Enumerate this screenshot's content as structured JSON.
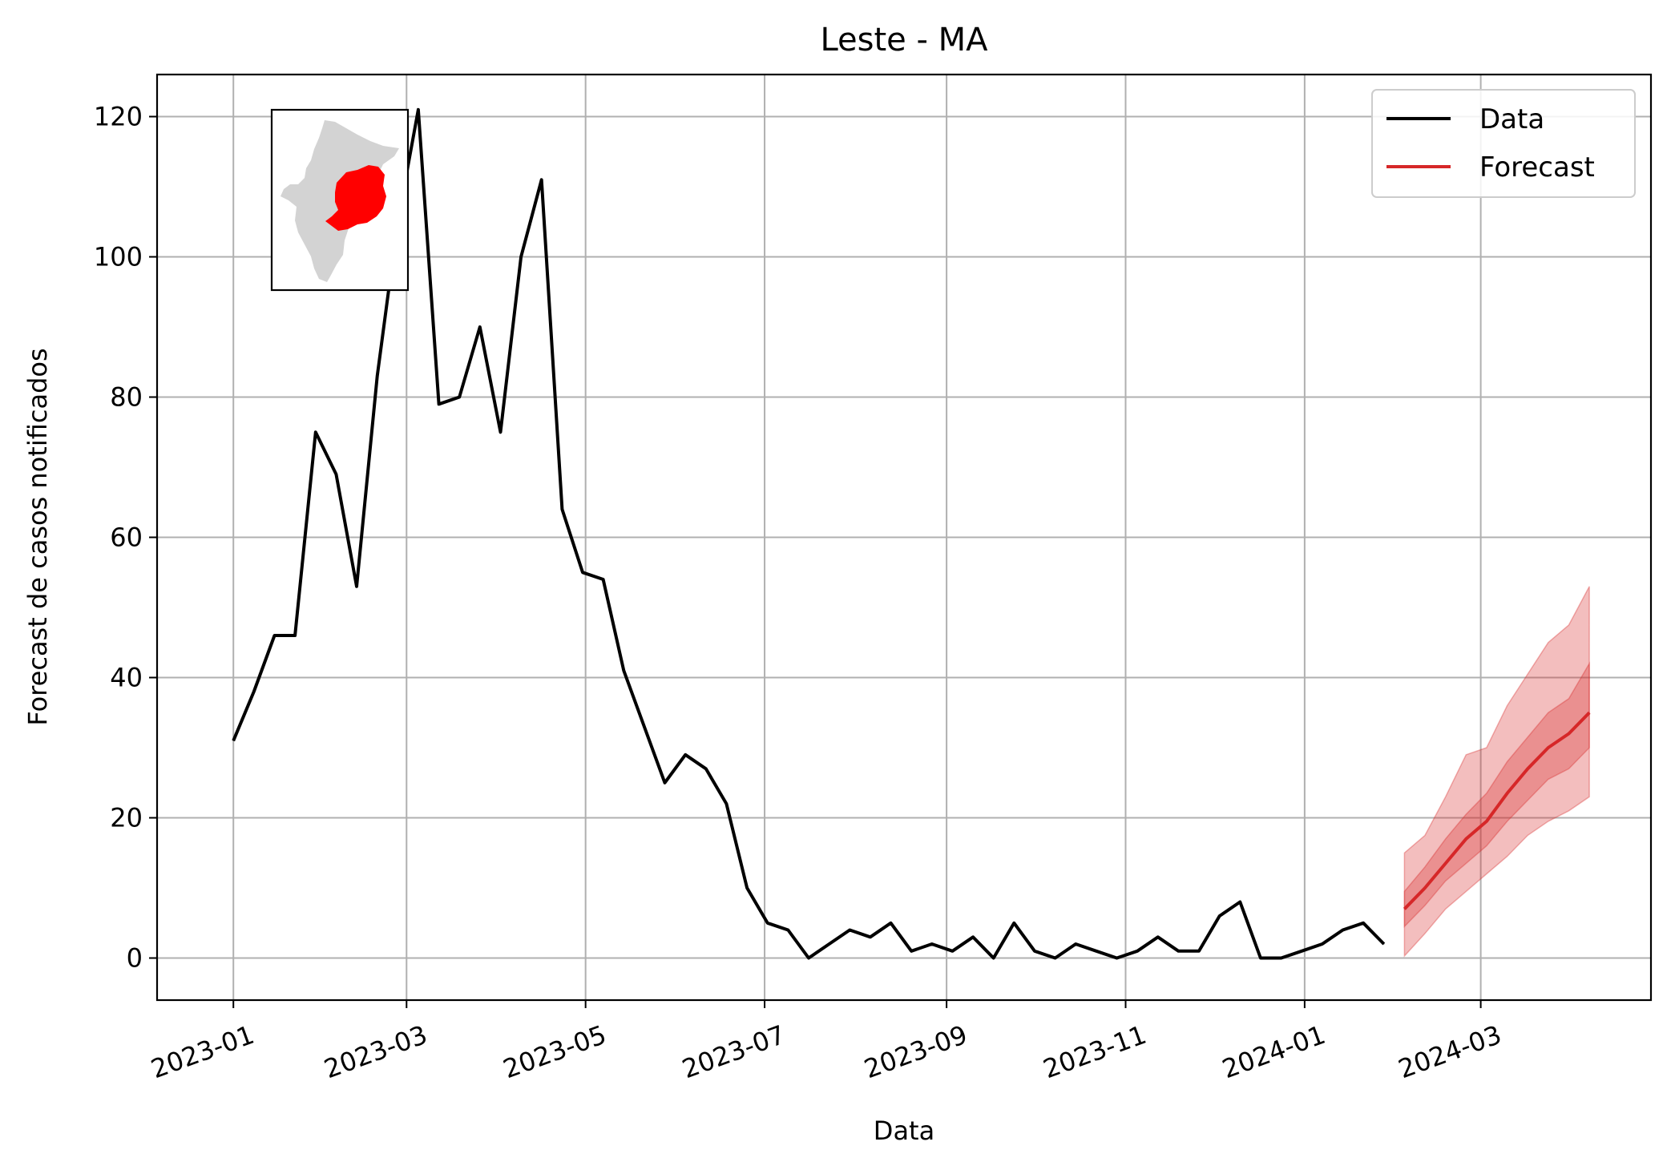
{
  "chart_data": {
    "type": "line",
    "title": "Leste - MA",
    "xlabel": "Data",
    "ylabel": "Forecast de casos notificados",
    "x_ticks": [
      "2023-01",
      "2023-03",
      "2023-05",
      "2023-07",
      "2023-09",
      "2023-11",
      "2024-01",
      "2024-03"
    ],
    "y_ticks": [
      0,
      20,
      40,
      60,
      80,
      100,
      120
    ],
    "xlim": [
      "2022-12-06",
      "2024-04-28"
    ],
    "ylim": [
      -6,
      126
    ],
    "grid": true,
    "legend_position": "top-right",
    "series": [
      {
        "name": "Data",
        "color": "#000000",
        "x": [
          "2023-01-01",
          "2023-01-08",
          "2023-01-15",
          "2023-01-22",
          "2023-01-29",
          "2023-02-05",
          "2023-02-12",
          "2023-02-19",
          "2023-02-26",
          "2023-03-05",
          "2023-03-12",
          "2023-03-19",
          "2023-03-26",
          "2023-04-02",
          "2023-04-09",
          "2023-04-16",
          "2023-04-23",
          "2023-04-30",
          "2023-05-07",
          "2023-05-14",
          "2023-05-21",
          "2023-05-28",
          "2023-06-04",
          "2023-06-11",
          "2023-06-18",
          "2023-06-25",
          "2023-07-02",
          "2023-07-09",
          "2023-07-16",
          "2023-07-23",
          "2023-07-30",
          "2023-08-06",
          "2023-08-13",
          "2023-08-20",
          "2023-08-27",
          "2023-09-03",
          "2023-09-10",
          "2023-09-17",
          "2023-09-24",
          "2023-10-01",
          "2023-10-08",
          "2023-10-15",
          "2023-10-22",
          "2023-10-29",
          "2023-11-05",
          "2023-11-12",
          "2023-11-19",
          "2023-11-26",
          "2023-12-03",
          "2023-12-10",
          "2023-12-17",
          "2023-12-24",
          "2023-12-31",
          "2024-01-07",
          "2024-01-14",
          "2024-01-21",
          "2024-01-28"
        ],
        "values": [
          31,
          38,
          46,
          46,
          75,
          69,
          53,
          83,
          105,
          121,
          79,
          80,
          90,
          75,
          100,
          111,
          64,
          55,
          54,
          41,
          33,
          25,
          29,
          27,
          22,
          10,
          5,
          4,
          0,
          2,
          4,
          3,
          5,
          1,
          2,
          1,
          3,
          0,
          5,
          1,
          0,
          2,
          1,
          0,
          1,
          3,
          1,
          1,
          6,
          8,
          0,
          0,
          1,
          2,
          4,
          5,
          2
        ]
      },
      {
        "name": "Forecast",
        "color": "#d62728",
        "x": [
          "2024-02-04",
          "2024-02-11",
          "2024-02-18",
          "2024-02-25",
          "2024-03-03",
          "2024-03-10",
          "2024-03-17",
          "2024-03-24",
          "2024-03-31",
          "2024-04-07"
        ],
        "values": [
          7,
          10,
          13.5,
          17,
          19.5,
          23.5,
          27,
          30,
          32,
          35
        ],
        "band_inner_low": [
          4.5,
          7.5,
          11,
          13.5,
          16,
          19.5,
          22.5,
          25.5,
          27,
          30
        ],
        "band_inner_high": [
          9.5,
          13,
          17,
          20.5,
          23.5,
          28,
          31.5,
          35,
          37,
          42
        ],
        "band_outer_low": [
          0.3,
          3.5,
          7,
          9.5,
          12,
          14.5,
          17.5,
          19.5,
          21,
          23
        ],
        "band_outer_high": [
          15,
          17.5,
          23,
          29,
          30,
          36,
          40.5,
          45,
          47.5,
          53
        ]
      }
    ]
  },
  "inset_map": {
    "label": "Maranhão state map with Leste region highlighted",
    "base_color": "#d3d3d3",
    "highlight_color": "#ff0000"
  }
}
